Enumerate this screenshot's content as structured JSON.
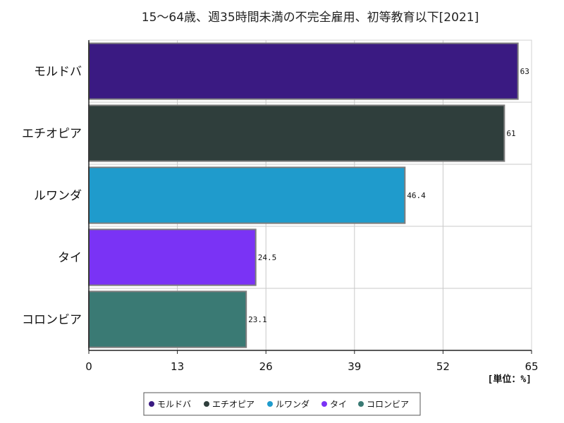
{
  "chart_data": {
    "type": "bar",
    "orientation": "horizontal",
    "title": "15～64歳、週35時間未満の不完全雇用、初等教育以下[2021]",
    "unit_label": "[単位：%]",
    "categories": [
      "モルドバ",
      "エチオピア",
      "ルワンダ",
      "タイ",
      "コロンビア"
    ],
    "values": [
      63,
      61,
      46.4,
      24.5,
      23.1
    ],
    "value_labels": [
      "63",
      "61",
      "46.4",
      "24.5",
      "23.1"
    ],
    "colors": [
      "#3a1a82",
      "#2f3e3c",
      "#1f9bcc",
      "#7a33f5",
      "#3a7a74"
    ],
    "xlim": [
      0,
      65
    ],
    "xticks": [
      0,
      13,
      26,
      39,
      52,
      65
    ],
    "grid": true,
    "legend_position": "bottom"
  }
}
